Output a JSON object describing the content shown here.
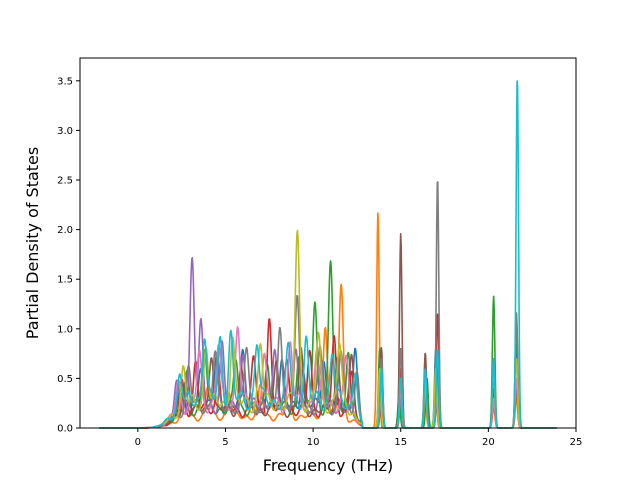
{
  "chart_data": {
    "type": "line",
    "title": "",
    "xlabel": "Frequency (THz)",
    "ylabel": "Partial Density of States",
    "xlim": [
      -3.3,
      25.0
    ],
    "ylim": [
      0.0,
      3.73
    ],
    "grid": false,
    "legend": "none",
    "xticks": [
      0,
      5,
      10,
      15,
      20,
      25
    ],
    "yticks": [
      0.0,
      0.5,
      1.0,
      1.5,
      2.0,
      2.5,
      3.0,
      3.5
    ],
    "series": [
      {
        "color": "#1f77b4",
        "peaks": [
          [
            2.4,
            0.25
          ],
          [
            3.6,
            0.45
          ],
          [
            4.5,
            0.5
          ],
          [
            6.0,
            0.55
          ],
          [
            8.2,
            0.45
          ],
          [
            9.4,
            0.4
          ],
          [
            10.6,
            0.5
          ],
          [
            12.4,
            0.72
          ],
          [
            13.8,
            0.6
          ],
          [
            15.0,
            0.45
          ],
          [
            16.4,
            0.5
          ],
          [
            17.0,
            0.8
          ],
          [
            20.3,
            0.55
          ],
          [
            21.6,
            0.85
          ]
        ],
        "base": 0.22
      },
      {
        "color": "#ff7f0e",
        "peaks": [
          [
            2.6,
            0.2
          ],
          [
            4.0,
            0.3
          ],
          [
            5.2,
            0.25
          ],
          [
            7.0,
            0.3
          ],
          [
            8.6,
            0.35
          ],
          [
            10.7,
            0.92
          ],
          [
            11.6,
            1.33
          ],
          [
            13.7,
            2.18
          ],
          [
            15.0,
            0.25
          ],
          [
            16.4,
            0.25
          ],
          [
            17.0,
            0.3
          ],
          [
            20.3,
            0.2
          ],
          [
            21.6,
            0.3
          ]
        ],
        "base": 0.12
      },
      {
        "color": "#2ca02c",
        "peaks": [
          [
            2.8,
            0.35
          ],
          [
            3.8,
            0.6
          ],
          [
            5.6,
            0.5
          ],
          [
            7.4,
            0.5
          ],
          [
            9.2,
            0.55
          ],
          [
            10.1,
            1.08
          ],
          [
            11.0,
            1.44
          ],
          [
            12.0,
            0.6
          ],
          [
            13.8,
            0.8
          ],
          [
            14.9,
            0.3
          ],
          [
            16.5,
            0.5
          ],
          [
            17.1,
            0.6
          ],
          [
            20.3,
            1.33
          ],
          [
            21.6,
            1.1
          ]
        ],
        "base": 0.2
      },
      {
        "color": "#d62728",
        "peaks": [
          [
            2.5,
            0.3
          ],
          [
            3.3,
            0.5
          ],
          [
            4.6,
            0.4
          ],
          [
            6.6,
            0.55
          ],
          [
            7.5,
            0.92
          ],
          [
            8.5,
            0.55
          ],
          [
            9.8,
            0.6
          ],
          [
            11.2,
            0.7
          ],
          [
            12.2,
            0.45
          ],
          [
            13.9,
            0.4
          ],
          [
            15.0,
            0.6
          ],
          [
            17.1,
            1.17
          ],
          [
            20.3,
            0.3
          ],
          [
            21.6,
            0.4
          ]
        ],
        "base": 0.18
      },
      {
        "color": "#9467bd",
        "peaks": [
          [
            2.2,
            0.3
          ],
          [
            3.1,
            1.54
          ],
          [
            3.6,
            0.8
          ],
          [
            4.8,
            0.6
          ],
          [
            6.0,
            0.5
          ],
          [
            7.8,
            0.5
          ],
          [
            9.0,
            0.55
          ],
          [
            10.5,
            0.45
          ],
          [
            13.8,
            0.4
          ],
          [
            15.0,
            0.3
          ],
          [
            17.0,
            0.4
          ],
          [
            20.3,
            0.35
          ],
          [
            21.6,
            0.5
          ]
        ],
        "base": 0.22
      },
      {
        "color": "#8c564b",
        "peaks": [
          [
            2.7,
            0.3
          ],
          [
            4.2,
            0.6
          ],
          [
            5.9,
            0.45
          ],
          [
            7.9,
            0.5
          ],
          [
            9.3,
            0.6
          ],
          [
            11.4,
            0.55
          ],
          [
            12.2,
            0.62
          ],
          [
            13.9,
            0.81
          ],
          [
            15.0,
            1.96
          ],
          [
            16.4,
            0.76
          ],
          [
            17.1,
            0.7
          ],
          [
            20.3,
            0.4
          ],
          [
            21.6,
            0.5
          ]
        ],
        "base": 0.18
      },
      {
        "color": "#e377c2",
        "peaks": [
          [
            2.3,
            0.3
          ],
          [
            3.5,
            0.5
          ],
          [
            4.6,
            0.6
          ],
          [
            5.7,
            0.82
          ],
          [
            7.2,
            0.5
          ],
          [
            8.7,
            0.6
          ],
          [
            10.2,
            0.55
          ],
          [
            11.9,
            0.5
          ],
          [
            13.8,
            0.5
          ],
          [
            15.0,
            0.4
          ],
          [
            16.4,
            0.4
          ],
          [
            17.0,
            0.5
          ],
          [
            20.3,
            0.3
          ],
          [
            21.6,
            0.5
          ]
        ],
        "base": 0.25
      },
      {
        "color": "#7f7f7f",
        "peaks": [
          [
            2.9,
            0.4
          ],
          [
            4.4,
            0.55
          ],
          [
            6.2,
            0.6
          ],
          [
            8.1,
            0.86
          ],
          [
            9.1,
            1.1
          ],
          [
            10.4,
            0.6
          ],
          [
            11.6,
            0.55
          ],
          [
            12.5,
            0.5
          ],
          [
            13.9,
            0.7
          ],
          [
            15.0,
            0.8
          ],
          [
            16.4,
            0.6
          ],
          [
            17.1,
            2.53
          ],
          [
            20.3,
            0.7
          ],
          [
            21.6,
            1.17
          ]
        ],
        "base": 0.22
      },
      {
        "color": "#bcbd22",
        "peaks": [
          [
            2.6,
            0.4
          ],
          [
            3.9,
            0.6
          ],
          [
            5.4,
            0.7
          ],
          [
            7.0,
            0.6
          ],
          [
            9.1,
            1.76
          ],
          [
            10.3,
            0.7
          ],
          [
            11.5,
            0.6
          ],
          [
            13.8,
            0.6
          ],
          [
            15.0,
            0.5
          ],
          [
            16.4,
            0.5
          ],
          [
            17.0,
            0.6
          ],
          [
            20.3,
            0.6
          ],
          [
            21.6,
            0.7
          ]
        ],
        "base": 0.25
      },
      {
        "color": "#17becf",
        "peaks": [
          [
            2.4,
            0.35
          ],
          [
            3.8,
            0.7
          ],
          [
            4.7,
            0.6
          ],
          [
            5.3,
            0.66
          ],
          [
            6.8,
            0.6
          ],
          [
            8.6,
            0.55
          ],
          [
            9.6,
            0.6
          ],
          [
            11.1,
            0.5
          ],
          [
            12.4,
            0.45
          ],
          [
            13.9,
            0.6
          ],
          [
            15.0,
            0.5
          ],
          [
            16.4,
            0.6
          ],
          [
            17.1,
            0.8
          ],
          [
            20.3,
            0.7
          ],
          [
            21.65,
            3.55
          ]
        ],
        "base": 0.28
      }
    ]
  }
}
